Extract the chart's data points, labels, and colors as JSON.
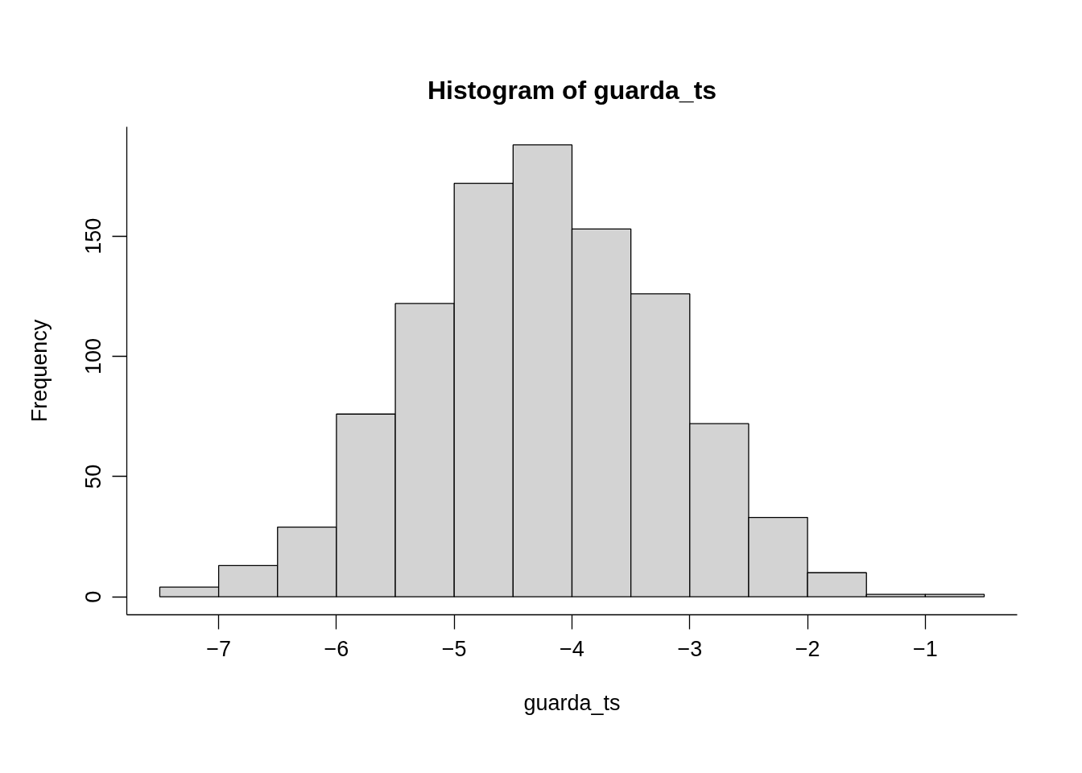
{
  "chart_data": {
    "type": "histogram",
    "title": "Histogram of guarda_ts",
    "xlabel": "guarda_ts",
    "ylabel": "Frequency",
    "bins": [
      -7.5,
      -7,
      -6.5,
      -6,
      -5.5,
      -5,
      -4.5,
      -4,
      -3.5,
      -3,
      -2.5,
      -2,
      -1.5,
      -1,
      -0.5
    ],
    "values": [
      4,
      13,
      29,
      76,
      122,
      172,
      188,
      153,
      126,
      72,
      33,
      10,
      1,
      1
    ],
    "color": "#d3d3d3",
    "xlim": [
      -7.78,
      -0.22
    ],
    "ylim": [
      -7.5,
      195.5
    ],
    "xticks": [
      -7,
      -6,
      -5,
      -4,
      -3,
      -2,
      -1
    ],
    "yticks": [
      0,
      50,
      100,
      150
    ],
    "grid": false
  }
}
